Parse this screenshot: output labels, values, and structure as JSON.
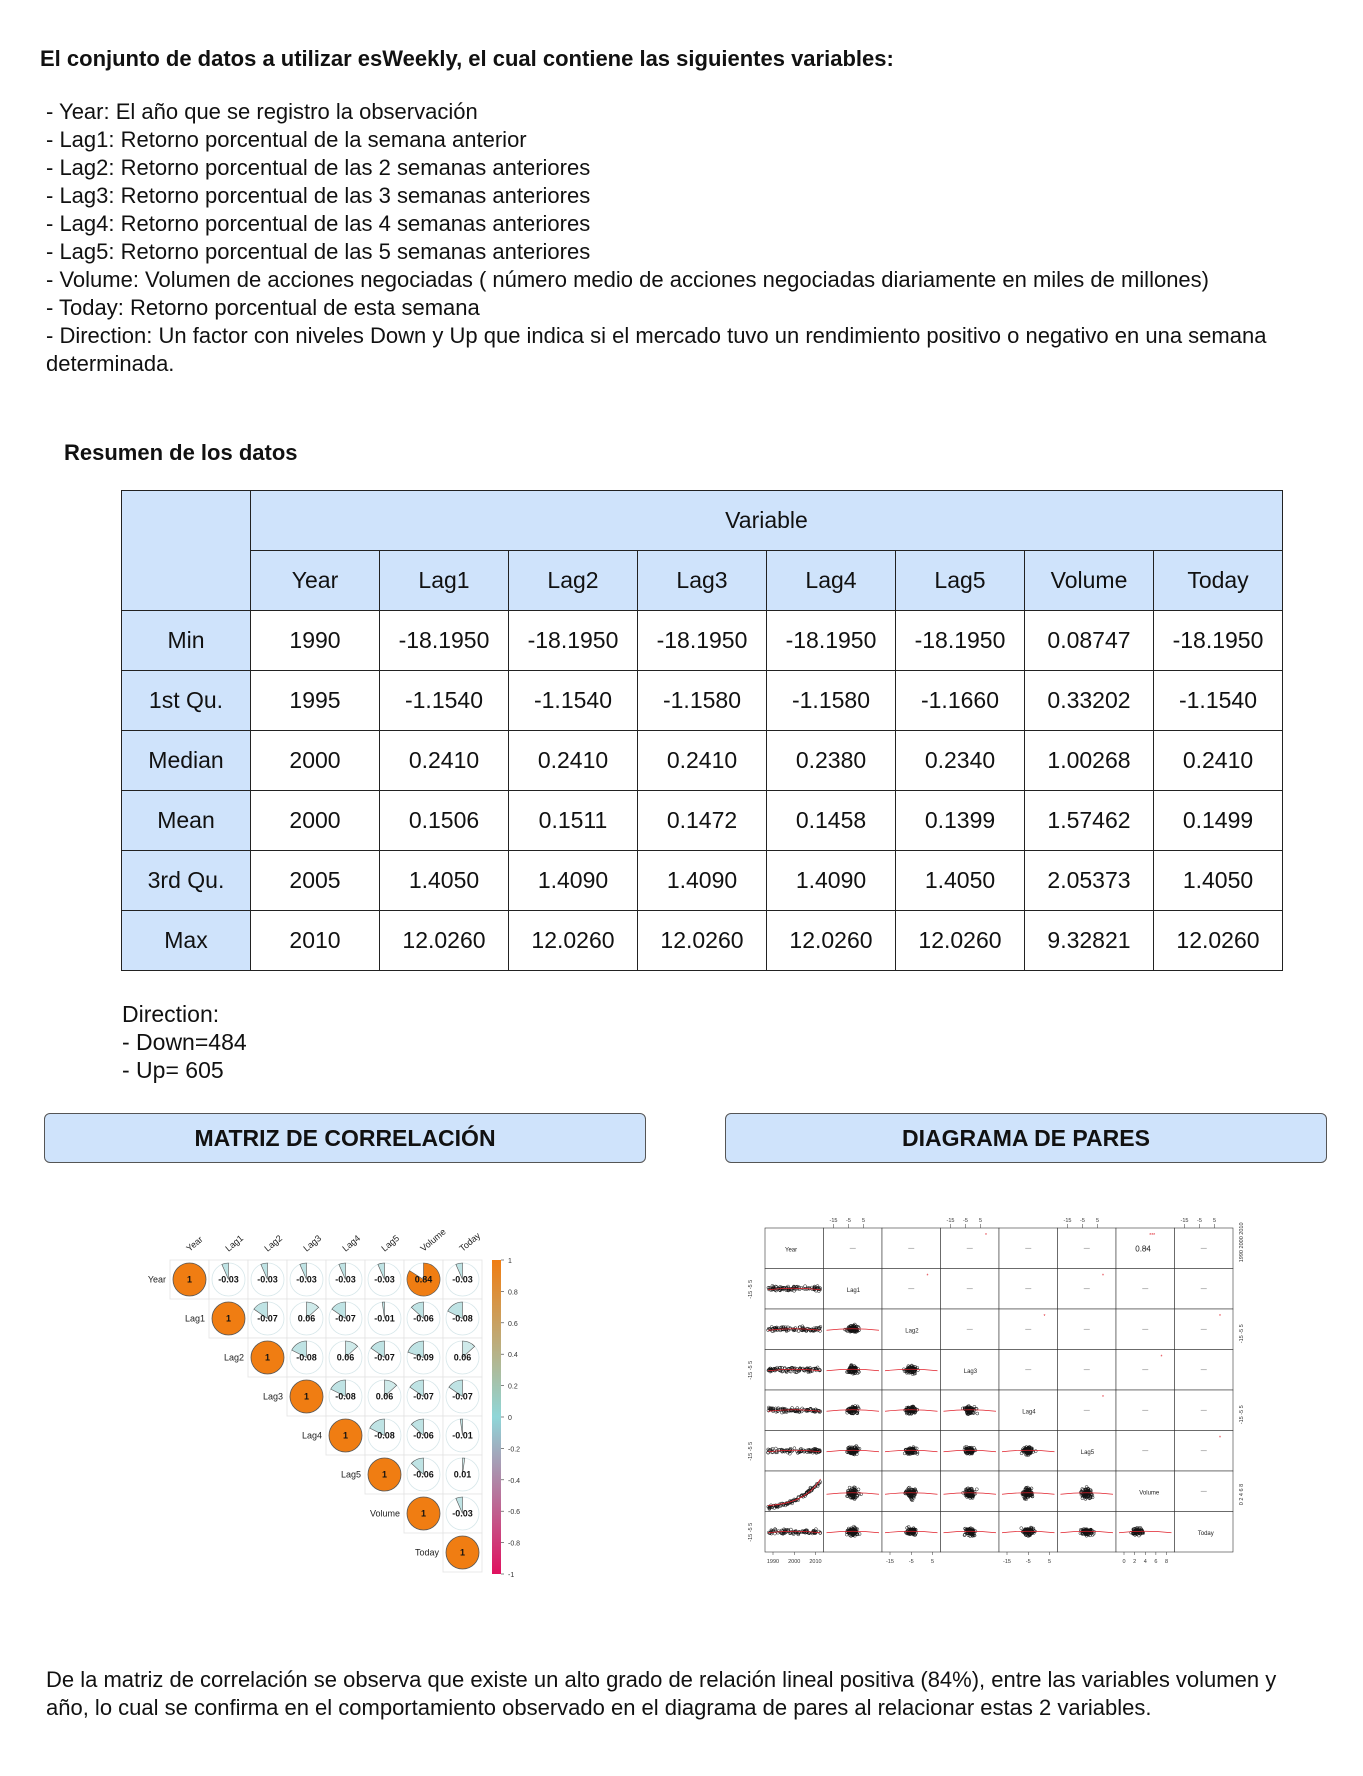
{
  "heading": {
    "part1": "El conjunto de datos a utilizar es",
    "part2": "Weekly, el cual contiene las siguientes variables:"
  },
  "variables": [
    "- Year: El año que se registro la observación",
    "- Lag1: Retorno porcentual de la semana anterior",
    "- Lag2: Retorno porcentual de las 2 semanas anteriores",
    "- Lag3: Retorno porcentual de las 3 semanas anteriores",
    "- Lag4: Retorno porcentual de las 4 semanas anteriores",
    "- Lag5: Retorno porcentual de las 5 semanas anteriores",
    "- Volume: Volumen de acciones negociadas ( número medio de acciones negociadas diariamente en miles de millones)",
    "- Today: Retorno porcentual de esta semana",
    "- Direction: Un factor con niveles Down y Up que indica si el mercado tuvo un rendimiento positivo o negativo en una semana determinada."
  ],
  "summary": {
    "title": "Resumen de los datos",
    "group_header": "Variable",
    "columns": [
      "Year",
      "Lag1",
      "Lag2",
      "Lag3",
      "Lag4",
      "Lag5",
      "Volume",
      "Today"
    ],
    "rows": [
      {
        "label": "Min",
        "values": [
          "1990",
          "-18.1950",
          "-18.1950",
          "-18.1950",
          "-18.1950",
          "-18.1950",
          "0.08747",
          "-18.1950"
        ]
      },
      {
        "label": "1st Qu.",
        "values": [
          "1995",
          "-1.1540",
          "-1.1540",
          "-1.1580",
          "-1.1580",
          "-1.1660",
          "0.33202",
          "-1.1540"
        ]
      },
      {
        "label": "Median",
        "values": [
          "2000",
          "0.2410",
          "0.2410",
          "0.2410",
          "0.2380",
          "0.2340",
          "1.00268",
          "0.2410"
        ]
      },
      {
        "label": "Mean",
        "values": [
          "2000",
          "0.1506",
          "0.1511",
          "0.1472",
          "0.1458",
          "0.1399",
          "1.57462",
          "0.1499"
        ]
      },
      {
        "label": "3rd Qu.",
        "values": [
          "2005",
          "1.4050",
          "1.4090",
          "1.4090",
          "1.4090",
          "1.4050",
          "2.05373",
          "1.4050"
        ]
      },
      {
        "label": "Max",
        "values": [
          "2010",
          "12.0260",
          "12.0260",
          "12.0260",
          "12.0260",
          "12.0260",
          "9.32821",
          "12.0260"
        ]
      }
    ]
  },
  "direction": {
    "title": "Direction:",
    "down": " - Down=484",
    "up": " - Up= 605"
  },
  "sections": {
    "correlation": "MATRIZ DE CORRELACIÓN",
    "pairs": "DIAGRAMA DE PARES"
  },
  "chart_data": [
    {
      "type": "heatmap",
      "labels": [
        "Year",
        "Lag1",
        "Lag2",
        "Lag3",
        "Lag4",
        "Lag5",
        "Volume",
        "Today"
      ],
      "matrix_upper": [
        [
          "1",
          "-0.03",
          "-0.03",
          "-0.03",
          "-0.03",
          "-0.03",
          "0.84",
          "-0.03"
        ],
        [
          "1",
          "-0.07",
          "0.06",
          "-0.07",
          "-0.01",
          "-0.06",
          "-0.08"
        ],
        [
          "1",
          "-0.08",
          "0.06",
          "-0.07",
          "-0.09",
          "0.06"
        ],
        [
          "1",
          "-0.08",
          "0.06",
          "-0.07",
          "-0.07"
        ],
        [
          "1",
          "-0.08",
          "-0.06",
          "-0.01"
        ],
        [
          "1",
          "-0.06",
          "0.01"
        ],
        [
          "1",
          "-0.03"
        ],
        [
          "1"
        ]
      ],
      "colorbar_ticks": [
        "1",
        "0.8",
        "0.6",
        "0.4",
        "0.2",
        "0",
        "-0.2",
        "-0.4",
        "-0.6",
        "-0.8",
        "-1"
      ],
      "colors": {
        "positive": "#f07d12",
        "negative": "#e0115f",
        "neutral": "#8fd6d8"
      }
    },
    {
      "type": "scatter",
      "variables": [
        "Year",
        "Lag1",
        "Lag2",
        "Lag3",
        "Lag4",
        "Lag5",
        "Volume",
        "Today"
      ],
      "upper_annotation": "0.84",
      "year_ticks": [
        "1990",
        "2000",
        "2010"
      ],
      "lag_ticks": [
        "-15",
        "-5",
        "5"
      ],
      "volume_ticks": [
        "0",
        "2",
        "4",
        "6",
        "8"
      ],
      "right_ticks_year": "1990 2000 2010",
      "right_ticks_lag": "-15 -5 5",
      "right_ticks_volume": "0 2 4 6 8"
    }
  ],
  "conclusion": "De la matriz de correlación se observa que existe un alto grado de relación lineal positiva (84%), entre las variables volumen y año, lo cual se confirma en el comportamiento observado en el diagrama de pares al relacionar estas 2 variables."
}
